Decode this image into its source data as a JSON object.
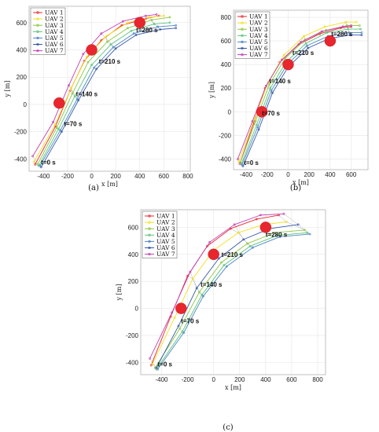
{
  "colors": {
    "UAV 1": "#e8262d",
    "UAV 2": "#f2e020",
    "UAV 3": "#8cc63f",
    "UAV 4": "#58c47a",
    "UAV 5": "#4a86c5",
    "UAV 6": "#3558a8",
    "UAV 7": "#c23fb5",
    "target": "#e8262d"
  },
  "chart_data": [
    {
      "type": "line",
      "caption": "(a)",
      "xlabel": "x [m]",
      "ylabel": "y [m]",
      "xlim": [
        -520,
        820
      ],
      "ylim": [
        -490,
        720
      ],
      "xticks": [
        -400,
        -200,
        0,
        200,
        400,
        600,
        800
      ],
      "yticks": [
        -400,
        -200,
        0,
        200,
        400,
        600
      ],
      "grid": true,
      "legend": "top-left",
      "series_names": [
        "UAV 1",
        "UAV 2",
        "UAV 3",
        "UAV 4",
        "UAV 5",
        "UAV 6",
        "UAV 7"
      ],
      "annotations": [
        {
          "text": "t=0 s",
          "x": -420,
          "y": -440
        },
        {
          "text": "t=70 s",
          "x": -230,
          "y": -160
        },
        {
          "text": "t=140 s",
          "x": -130,
          "y": 60
        },
        {
          "text": "t=210 s",
          "x": 60,
          "y": 300
        },
        {
          "text": "t=280 s",
          "x": 370,
          "y": 530
        }
      ],
      "targets": [
        {
          "x": -270,
          "y": 10
        },
        {
          "x": 0,
          "y": 400
        },
        {
          "x": 400,
          "y": 600
        }
      ],
      "paths": [
        [
          [
            -470,
            -440
          ],
          [
            -300,
            -160
          ],
          [
            -180,
            100
          ],
          [
            -60,
            320
          ],
          [
            80,
            470
          ],
          [
            250,
            580
          ],
          [
            450,
            630
          ],
          [
            560,
            650
          ]
        ],
        [
          [
            -480,
            -420
          ],
          [
            -305,
            -150
          ],
          [
            -170,
            120
          ],
          [
            -40,
            350
          ],
          [
            120,
            500
          ],
          [
            300,
            600
          ],
          [
            480,
            640
          ],
          [
            600,
            650
          ]
        ],
        [
          [
            -450,
            -440
          ],
          [
            -290,
            -170
          ],
          [
            -160,
            80
          ],
          [
            -30,
            310
          ],
          [
            130,
            460
          ],
          [
            300,
            560
          ],
          [
            500,
            620
          ],
          [
            650,
            640
          ]
        ],
        [
          [
            -440,
            -450
          ],
          [
            -275,
            -180
          ],
          [
            -140,
            60
          ],
          [
            0,
            290
          ],
          [
            160,
            440
          ],
          [
            330,
            540
          ],
          [
            520,
            590
          ],
          [
            650,
            600
          ]
        ],
        [
          [
            -430,
            -450
          ],
          [
            -260,
            -190
          ],
          [
            -120,
            40
          ],
          [
            20,
            270
          ],
          [
            180,
            420
          ],
          [
            350,
            520
          ],
          [
            550,
            570
          ],
          [
            700,
            580
          ]
        ],
        [
          [
            -420,
            -460
          ],
          [
            -250,
            -200
          ],
          [
            -110,
            30
          ],
          [
            40,
            260
          ],
          [
            200,
            410
          ],
          [
            370,
            510
          ],
          [
            570,
            550
          ],
          [
            700,
            560
          ]
        ],
        [
          [
            -490,
            -380
          ],
          [
            -320,
            -130
          ],
          [
            -190,
            140
          ],
          [
            -70,
            370
          ],
          [
            80,
            520
          ],
          [
            260,
            610
          ],
          [
            450,
            650
          ],
          [
            540,
            660
          ]
        ]
      ]
    },
    {
      "type": "line",
      "caption": "(b)",
      "xlabel": "x [m]",
      "ylabel": "y [m]",
      "xlim": [
        -520,
        760
      ],
      "ylim": [
        -490,
        860
      ],
      "xticks": [
        -400,
        -200,
        0,
        200,
        400,
        600
      ],
      "yticks": [
        -400,
        -200,
        0,
        200,
        400,
        600,
        800
      ],
      "grid": true,
      "legend": "top-left",
      "series_names": [
        "UAV 1",
        "UAV 2",
        "UAV 3",
        "UAV 4",
        "UAV 5",
        "UAV 6",
        "UAV 7"
      ],
      "annotations": [
        {
          "text": "t=0 s",
          "x": -420,
          "y": -450
        },
        {
          "text": "t=70 s",
          "x": -250,
          "y": -30
        },
        {
          "text": "t=140 s",
          "x": -180,
          "y": 240
        },
        {
          "text": "t=210 s",
          "x": 40,
          "y": 480
        },
        {
          "text": "t=280 s",
          "x": 410,
          "y": 640
        }
      ],
      "targets": [
        {
          "x": -250,
          "y": 0
        },
        {
          "x": 0,
          "y": 400
        },
        {
          "x": 400,
          "y": 600
        }
      ],
      "paths": [
        [
          [
            -460,
            -440
          ],
          [
            -330,
            -100
          ],
          [
            -220,
            200
          ],
          [
            -80,
            420
          ],
          [
            100,
            570
          ],
          [
            300,
            660
          ],
          [
            500,
            710
          ],
          [
            600,
            720
          ]
        ],
        [
          [
            -470,
            -420
          ],
          [
            -320,
            -60
          ],
          [
            -190,
            250
          ],
          [
            -40,
            480
          ],
          [
            150,
            640
          ],
          [
            350,
            720
          ],
          [
            550,
            760
          ],
          [
            650,
            760
          ]
        ],
        [
          [
            -455,
            -430
          ],
          [
            -310,
            -80
          ],
          [
            -180,
            230
          ],
          [
            -30,
            450
          ],
          [
            160,
            610
          ],
          [
            360,
            690
          ],
          [
            560,
            730
          ],
          [
            680,
            730
          ]
        ],
        [
          [
            -445,
            -440
          ],
          [
            -300,
            -110
          ],
          [
            -170,
            200
          ],
          [
            -20,
            420
          ],
          [
            170,
            580
          ],
          [
            370,
            670
          ],
          [
            570,
            700
          ],
          [
            690,
            700
          ]
        ],
        [
          [
            -440,
            -450
          ],
          [
            -290,
            -130
          ],
          [
            -160,
            180
          ],
          [
            -10,
            400
          ],
          [
            180,
            560
          ],
          [
            380,
            640
          ],
          [
            580,
            670
          ],
          [
            700,
            670
          ]
        ],
        [
          [
            -430,
            -460
          ],
          [
            -280,
            -150
          ],
          [
            -150,
            160
          ],
          [
            0,
            380
          ],
          [
            190,
            540
          ],
          [
            390,
            620
          ],
          [
            590,
            650
          ],
          [
            700,
            650
          ]
        ],
        [
          [
            -480,
            -400
          ],
          [
            -340,
            -80
          ],
          [
            -210,
            220
          ],
          [
            -60,
            440
          ],
          [
            120,
            590
          ],
          [
            320,
            680
          ],
          [
            520,
            720
          ],
          [
            600,
            730
          ]
        ]
      ]
    },
    {
      "type": "line",
      "caption": "(c)",
      "xlabel": "x [m]",
      "ylabel": "y [m]",
      "xlim": [
        -560,
        860
      ],
      "ylim": [
        -490,
        730
      ],
      "xticks": [
        -400,
        -200,
        0,
        200,
        400,
        600,
        800
      ],
      "yticks": [
        -400,
        -200,
        0,
        200,
        400,
        600
      ],
      "grid": true,
      "legend": "top-left",
      "series_names": [
        "UAV 1",
        "UAV 2",
        "UAV 3",
        "UAV 4",
        "UAV 5",
        "UAV 6",
        "UAV 7"
      ],
      "annotations": [
        {
          "text": "t=0 s",
          "x": -430,
          "y": -430
        },
        {
          "text": "t=70 s",
          "x": -250,
          "y": -110
        },
        {
          "text": "t=140 s",
          "x": -100,
          "y": 160
        },
        {
          "text": "t=210 s",
          "x": 60,
          "y": 380
        },
        {
          "text": "t=280 s",
          "x": 400,
          "y": 530
        }
      ],
      "targets": [
        {
          "x": -250,
          "y": 0
        },
        {
          "x": 0,
          "y": 400
        },
        {
          "x": 400,
          "y": 600
        }
      ],
      "paths": [
        [
          [
            -480,
            -420
          ],
          [
            -330,
            -60
          ],
          [
            -200,
            240
          ],
          [
            -50,
            460
          ],
          [
            130,
            590
          ],
          [
            330,
            660
          ],
          [
            500,
            690
          ]
        ],
        [
          [
            -470,
            -410
          ],
          [
            -300,
            -70
          ],
          [
            -160,
            220
          ],
          [
            0,
            430
          ],
          [
            190,
            560
          ],
          [
            380,
            620
          ],
          [
            560,
            640
          ]
        ],
        [
          [
            -450,
            -440
          ],
          [
            -260,
            -150
          ],
          [
            -110,
            120
          ],
          [
            60,
            340
          ],
          [
            260,
            480
          ],
          [
            470,
            560
          ],
          [
            700,
            580
          ]
        ],
        [
          [
            -440,
            -450
          ],
          [
            -240,
            -170
          ],
          [
            -90,
            100
          ],
          [
            80,
            320
          ],
          [
            280,
            460
          ],
          [
            490,
            540
          ],
          [
            720,
            560
          ]
        ],
        [
          [
            -430,
            -450
          ],
          [
            -230,
            -180
          ],
          [
            -80,
            90
          ],
          [
            100,
            310
          ],
          [
            300,
            450
          ],
          [
            510,
            530
          ],
          [
            740,
            550
          ]
        ],
        [
          [
            -440,
            -440
          ],
          [
            -270,
            -130
          ],
          [
            -130,
            150
          ],
          [
            40,
            370
          ],
          [
            230,
            510
          ],
          [
            430,
            590
          ],
          [
            650,
            620
          ]
        ],
        [
          [
            -490,
            -370
          ],
          [
            -320,
            -30
          ],
          [
            -180,
            270
          ],
          [
            -30,
            490
          ],
          [
            160,
            620
          ],
          [
            360,
            690
          ],
          [
            540,
            700
          ]
        ]
      ]
    }
  ]
}
